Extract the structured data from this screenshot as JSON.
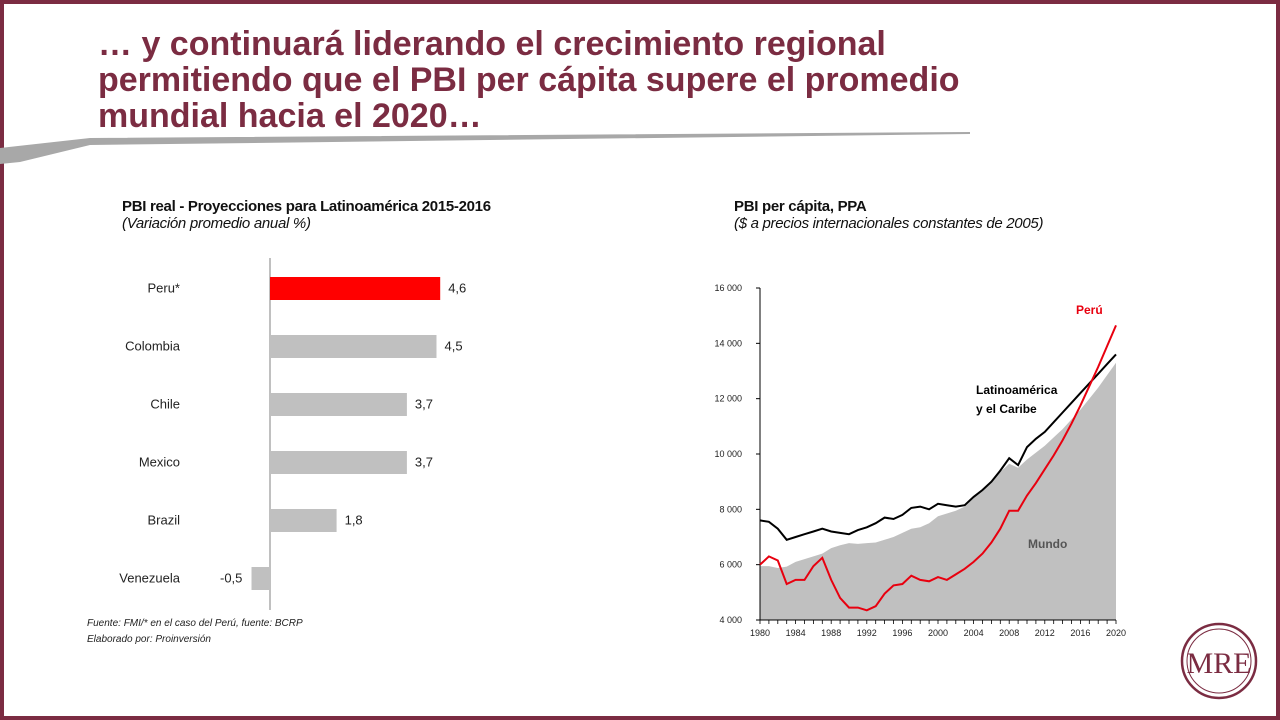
{
  "slide": {
    "title_lines": [
      "… y continuará liderando el crecimiento regional",
      "permitiendo que el PBI per cápita supere el promedio",
      "mundial hacia el 2020…"
    ],
    "accent_color": "#7b2c42",
    "logo_text": "MRE"
  },
  "bar_chart": {
    "title": "PBI real - Proyecciones para Latinoamérica 2015-2016",
    "subtitle": "(Variación promedio anual %)",
    "source_lines": [
      "Fuente: FMI/* en el caso del Perú, fuente: BCRP",
      "Elaborado por: Proinversión"
    ]
  },
  "line_chart": {
    "title": "PBI per cápita, PPA",
    "subtitle": "($ a precios internacionales constantes de 2005)"
  },
  "chart_data": [
    {
      "type": "bar",
      "orientation": "horizontal",
      "title": "PBI real - Proyecciones para Latinoamérica 2015-2016",
      "subtitle": "(Variación promedio anual %)",
      "categories": [
        "Peru*",
        "Colombia",
        "Chile",
        "Mexico",
        "Brazil",
        "Venezuela"
      ],
      "values": [
        4.6,
        4.5,
        3.7,
        3.7,
        1.8,
        -0.5
      ],
      "labels": [
        "4,6",
        "4,5",
        "3,7",
        "3,7",
        "1,8",
        "-0,5"
      ],
      "colors": [
        "#ff0000",
        "#c0c0c0",
        "#c0c0c0",
        "#c0c0c0",
        "#c0c0c0",
        "#c0c0c0"
      ],
      "xlim": [
        -0.7,
        7
      ]
    },
    {
      "type": "line",
      "title": "PBI per cápita, PPA",
      "subtitle": "($ a precios internacionales constantes de 2005)",
      "xlim": [
        1980,
        2020
      ],
      "ylim": [
        4000,
        16000
      ],
      "yticks": [
        4000,
        6000,
        8000,
        10000,
        12000,
        14000,
        16000
      ],
      "ytick_labels": [
        "4 000",
        "6 000",
        "8 000",
        "10 000",
        "12 000",
        "14 000",
        "16 000"
      ],
      "xticks": [
        1980,
        1984,
        1988,
        1992,
        1996,
        2000,
        2004,
        2008,
        2012,
        2016,
        2020
      ],
      "series": [
        {
          "name": "Mundo",
          "style": "area",
          "color": "#c0c0c0",
          "points": [
            [
              1980,
              5950
            ],
            [
              1981,
              5950
            ],
            [
              1982,
              5880
            ],
            [
              1983,
              5930
            ],
            [
              1984,
              6100
            ],
            [
              1985,
              6200
            ],
            [
              1986,
              6300
            ],
            [
              1987,
              6400
            ],
            [
              1988,
              6600
            ],
            [
              1989,
              6700
            ],
            [
              1990,
              6780
            ],
            [
              1991,
              6750
            ],
            [
              1992,
              6780
            ],
            [
              1993,
              6800
            ],
            [
              1994,
              6900
            ],
            [
              1995,
              7000
            ],
            [
              1996,
              7150
            ],
            [
              1997,
              7300
            ],
            [
              1998,
              7350
            ],
            [
              1999,
              7500
            ],
            [
              2000,
              7750
            ],
            [
              2001,
              7850
            ],
            [
              2002,
              7950
            ],
            [
              2003,
              8100
            ],
            [
              2004,
              8400
            ],
            [
              2005,
              8700
            ],
            [
              2006,
              9000
            ],
            [
              2007,
              9350
            ],
            [
              2008,
              9650
            ],
            [
              2009,
              9500
            ],
            [
              2010,
              9800
            ],
            [
              2011,
              10050
            ],
            [
              2012,
              10300
            ],
            [
              2013,
              10600
            ],
            [
              2014,
              10900
            ],
            [
              2015,
              11250
            ],
            [
              2016,
              11600
            ],
            [
              2017,
              12000
            ],
            [
              2018,
              12400
            ],
            [
              2019,
              12850
            ],
            [
              2020,
              13300
            ]
          ]
        },
        {
          "name": "Latinoamérica y el Caribe",
          "label_lines": [
            "Latinoamérica",
            "y el Caribe"
          ],
          "color": "#000000",
          "points": [
            [
              1980,
              7600
            ],
            [
              1981,
              7550
            ],
            [
              1982,
              7300
            ],
            [
              1983,
              6900
            ],
            [
              1984,
              7000
            ],
            [
              1985,
              7100
            ],
            [
              1986,
              7200
            ],
            [
              1987,
              7300
            ],
            [
              1988,
              7200
            ],
            [
              1989,
              7150
            ],
            [
              1990,
              7100
            ],
            [
              1991,
              7250
            ],
            [
              1992,
              7350
            ],
            [
              1993,
              7500
            ],
            [
              1994,
              7700
            ],
            [
              1995,
              7650
            ],
            [
              1996,
              7800
            ],
            [
              1997,
              8050
            ],
            [
              1998,
              8100
            ],
            [
              1999,
              8000
            ],
            [
              2000,
              8200
            ],
            [
              2001,
              8150
            ],
            [
              2002,
              8100
            ],
            [
              2003,
              8150
            ],
            [
              2004,
              8450
            ],
            [
              2005,
              8700
            ],
            [
              2006,
              9000
            ],
            [
              2007,
              9400
            ],
            [
              2008,
              9850
            ],
            [
              2009,
              9600
            ],
            [
              2010,
              10250
            ],
            [
              2011,
              10550
            ],
            [
              2012,
              10800
            ],
            [
              2013,
              11150
            ],
            [
              2014,
              11500
            ],
            [
              2015,
              11850
            ],
            [
              2016,
              12200
            ],
            [
              2017,
              12550
            ],
            [
              2018,
              12900
            ],
            [
              2019,
              13250
            ],
            [
              2020,
              13600
            ]
          ]
        },
        {
          "name": "Perú",
          "color": "#e8000f",
          "points": [
            [
              1980,
              6000
            ],
            [
              1981,
              6300
            ],
            [
              1982,
              6150
            ],
            [
              1983,
              5300
            ],
            [
              1984,
              5450
            ],
            [
              1985,
              5450
            ],
            [
              1986,
              5950
            ],
            [
              1987,
              6250
            ],
            [
              1988,
              5450
            ],
            [
              1989,
              4800
            ],
            [
              1990,
              4450
            ],
            [
              1991,
              4450
            ],
            [
              1992,
              4350
            ],
            [
              1993,
              4500
            ],
            [
              1994,
              4950
            ],
            [
              1995,
              5250
            ],
            [
              1996,
              5300
            ],
            [
              1997,
              5600
            ],
            [
              1998,
              5450
            ],
            [
              1999,
              5400
            ],
            [
              2000,
              5550
            ],
            [
              2001,
              5450
            ],
            [
              2002,
              5650
            ],
            [
              2003,
              5850
            ],
            [
              2004,
              6100
            ],
            [
              2005,
              6400
            ],
            [
              2006,
              6800
            ],
            [
              2007,
              7300
            ],
            [
              2008,
              7950
            ],
            [
              2009,
              7950
            ],
            [
              2010,
              8500
            ],
            [
              2011,
              8950
            ],
            [
              2012,
              9450
            ],
            [
              2013,
              9950
            ],
            [
              2014,
              10500
            ],
            [
              2015,
              11100
            ],
            [
              2016,
              11750
            ],
            [
              2017,
              12450
            ],
            [
              2018,
              13150
            ],
            [
              2019,
              13900
            ],
            [
              2020,
              14650
            ]
          ]
        }
      ]
    }
  ]
}
